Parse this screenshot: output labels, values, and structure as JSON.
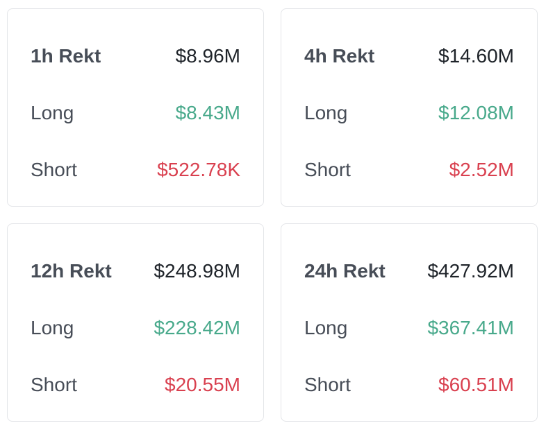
{
  "cards": [
    {
      "title": "1h Rekt",
      "total": "$8.96M",
      "rows": [
        {
          "label": "Long",
          "value": "$8.43M"
        },
        {
          "label": "Short",
          "value": "$522.78K"
        }
      ]
    },
    {
      "title": "4h Rekt",
      "total": "$14.60M",
      "rows": [
        {
          "label": "Long",
          "value": "$12.08M"
        },
        {
          "label": "Short",
          "value": "$2.52M"
        }
      ]
    },
    {
      "title": "12h Rekt",
      "total": "$248.98M",
      "rows": [
        {
          "label": "Long",
          "value": "$228.42M"
        },
        {
          "label": "Short",
          "value": "$20.55M"
        }
      ]
    },
    {
      "title": "24h Rekt",
      "total": "$427.92M",
      "rows": [
        {
          "label": "Long",
          "value": "$367.41M"
        },
        {
          "label": "Short",
          "value": "$60.51M"
        }
      ]
    }
  ]
}
